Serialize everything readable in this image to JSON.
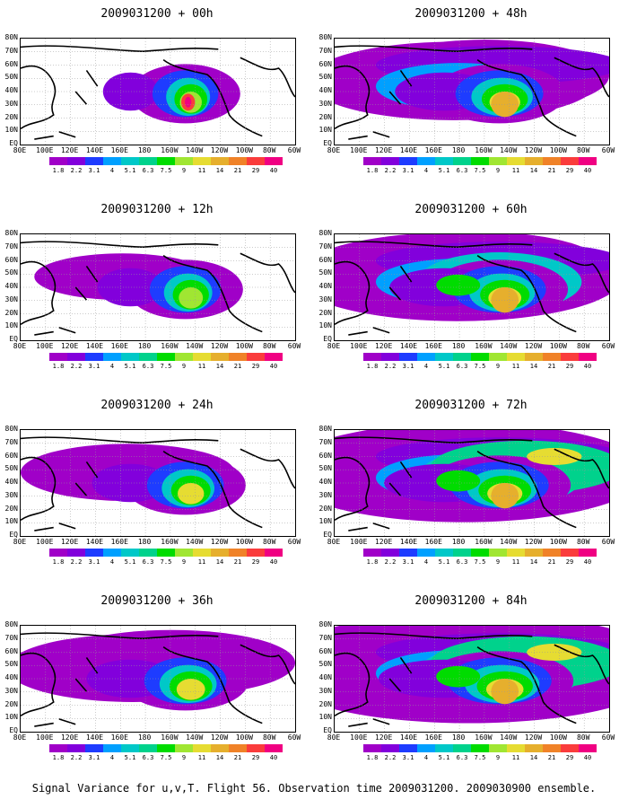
{
  "footer": "Signal Variance for u,v,T. Flight 56. Observation time 2009031200. 2009030900 ensemble.",
  "lat_labels": [
    "80N",
    "70N",
    "60N",
    "50N",
    "40N",
    "30N",
    "20N",
    "10N",
    "EQ"
  ],
  "lon_labels": [
    "80E",
    "100E",
    "120E",
    "140E",
    "160E",
    "180",
    "160W",
    "140W",
    "120W",
    "100W",
    "80W",
    "60W"
  ],
  "colorbar": {
    "labels": [
      "1.8",
      "2.2",
      "3.1",
      "4",
      "5.1",
      "6.3",
      "7.5",
      "9",
      "11",
      "14",
      "21",
      "29",
      "40"
    ],
    "colors": [
      "#a000c8",
      "#8200dc",
      "#1e3cff",
      "#00a0ff",
      "#00c8c8",
      "#00d28c",
      "#00dc00",
      "#a0e632",
      "#e6dc32",
      "#e6af2d",
      "#f08228",
      "#fa3c3c",
      "#f00082"
    ]
  },
  "panels": [
    {
      "title": "2009031200 + 00h",
      "level": 0
    },
    {
      "title": "2009031200 + 12h",
      "level": 1
    },
    {
      "title": "2009031200 + 24h",
      "level": 2
    },
    {
      "title": "2009031200 + 36h",
      "level": 3
    },
    {
      "title": "2009031200 + 48h",
      "level": 4
    },
    {
      "title": "2009031200 + 60h",
      "level": 5
    },
    {
      "title": "2009031200 + 72h",
      "level": 6
    },
    {
      "title": "2009031200 + 84h",
      "level": 7
    }
  ]
}
